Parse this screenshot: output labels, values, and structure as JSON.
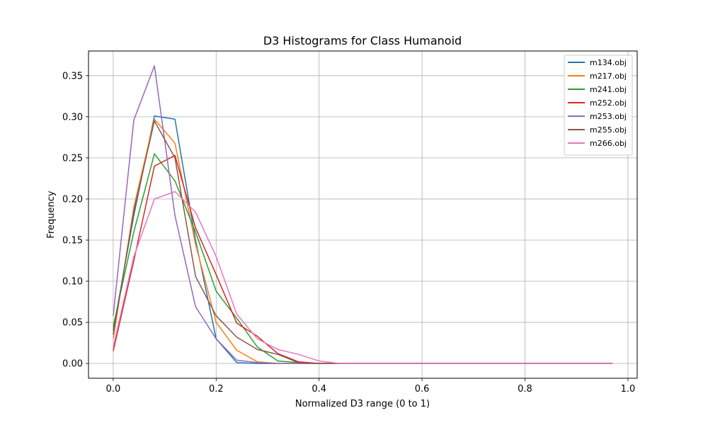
{
  "chart_data": {
    "type": "line",
    "title": "D3 Histograms for Class Humanoid",
    "xlabel": "Normalized D3 range (0 to 1)",
    "ylabel": "Frequency",
    "xlim": [
      -0.048,
      1.018
    ],
    "ylim": [
      -0.018,
      0.38
    ],
    "xticks": [
      0.0,
      0.2,
      0.4,
      0.6,
      0.8,
      1.0
    ],
    "xtick_labels": [
      "0.0",
      "0.2",
      "0.4",
      "0.6",
      "0.8",
      "1.0"
    ],
    "yticks": [
      0.0,
      0.05,
      0.1,
      0.15,
      0.2,
      0.25,
      0.3,
      0.35
    ],
    "ytick_labels": [
      "0.00",
      "0.05",
      "0.10",
      "0.15",
      "0.20",
      "0.25",
      "0.30",
      "0.35"
    ],
    "grid": true,
    "legend_position": "top-right",
    "x": [
      0.0,
      0.04,
      0.08,
      0.12,
      0.16,
      0.2,
      0.24,
      0.28,
      0.32,
      0.36,
      0.4,
      0.44,
      0.48,
      0.52,
      0.56,
      0.6,
      0.64,
      0.68,
      0.72,
      0.76,
      0.8,
      0.84,
      0.88,
      0.92,
      0.97
    ],
    "series": [
      {
        "name": "m134.obj",
        "color": "#1f77b4",
        "values": [
          0.04,
          0.18,
          0.301,
          0.297,
          0.15,
          0.03,
          0.001,
          0.0,
          0.0,
          0.0,
          0.0,
          0.0,
          0.0,
          0.0,
          0.0,
          0.0,
          0.0,
          0.0,
          0.0,
          0.0,
          0.0,
          0.0,
          0.0,
          0.0,
          0.0
        ]
      },
      {
        "name": "m217.obj",
        "color": "#ff7f0e",
        "values": [
          0.03,
          0.19,
          0.297,
          0.268,
          0.145,
          0.05,
          0.016,
          0.002,
          0.0,
          0.0,
          0.0,
          0.0,
          0.0,
          0.0,
          0.0,
          0.0,
          0.0,
          0.0,
          0.0,
          0.0,
          0.0,
          0.0,
          0.0,
          0.0,
          0.0
        ]
      },
      {
        "name": "m241.obj",
        "color": "#2ca02c",
        "values": [
          0.045,
          0.16,
          0.255,
          0.222,
          0.16,
          0.088,
          0.055,
          0.02,
          0.003,
          0.001,
          0.0,
          0.0,
          0.0,
          0.0,
          0.0,
          0.0,
          0.0,
          0.0,
          0.0,
          0.0,
          0.0,
          0.0,
          0.0,
          0.0,
          0.0
        ]
      },
      {
        "name": "m252.obj",
        "color": "#d62728",
        "values": [
          0.015,
          0.125,
          0.24,
          0.253,
          0.165,
          0.108,
          0.049,
          0.033,
          0.012,
          0.002,
          0.0,
          0.0,
          0.0,
          0.0,
          0.0,
          0.0,
          0.0,
          0.0,
          0.0,
          0.0,
          0.0,
          0.0,
          0.0,
          0.0,
          0.0
        ]
      },
      {
        "name": "m253.obj",
        "color": "#9467bd",
        "values": [
          0.058,
          0.296,
          0.362,
          0.18,
          0.069,
          0.03,
          0.004,
          0.001,
          0.0,
          0.0,
          0.0,
          0.0,
          0.0,
          0.0,
          0.0,
          0.0,
          0.0,
          0.0,
          0.0,
          0.0,
          0.0,
          0.0,
          0.0,
          0.0,
          0.0
        ]
      },
      {
        "name": "m255.obj",
        "color": "#8c564b",
        "values": [
          0.035,
          0.185,
          0.295,
          0.25,
          0.106,
          0.058,
          0.032,
          0.017,
          0.011,
          0.001,
          0.0,
          0.0,
          0.0,
          0.0,
          0.0,
          0.0,
          0.0,
          0.0,
          0.0,
          0.0,
          0.0,
          0.0,
          0.0,
          0.0,
          0.0
        ]
      },
      {
        "name": "m266.obj",
        "color": "#e377c2",
        "values": [
          0.02,
          0.13,
          0.2,
          0.209,
          0.184,
          0.13,
          0.06,
          0.03,
          0.017,
          0.011,
          0.003,
          0.0,
          0.0,
          0.0,
          0.0,
          0.0,
          0.0,
          0.0,
          0.0,
          0.0,
          0.0,
          0.0,
          0.0,
          0.0,
          0.0
        ]
      }
    ]
  }
}
